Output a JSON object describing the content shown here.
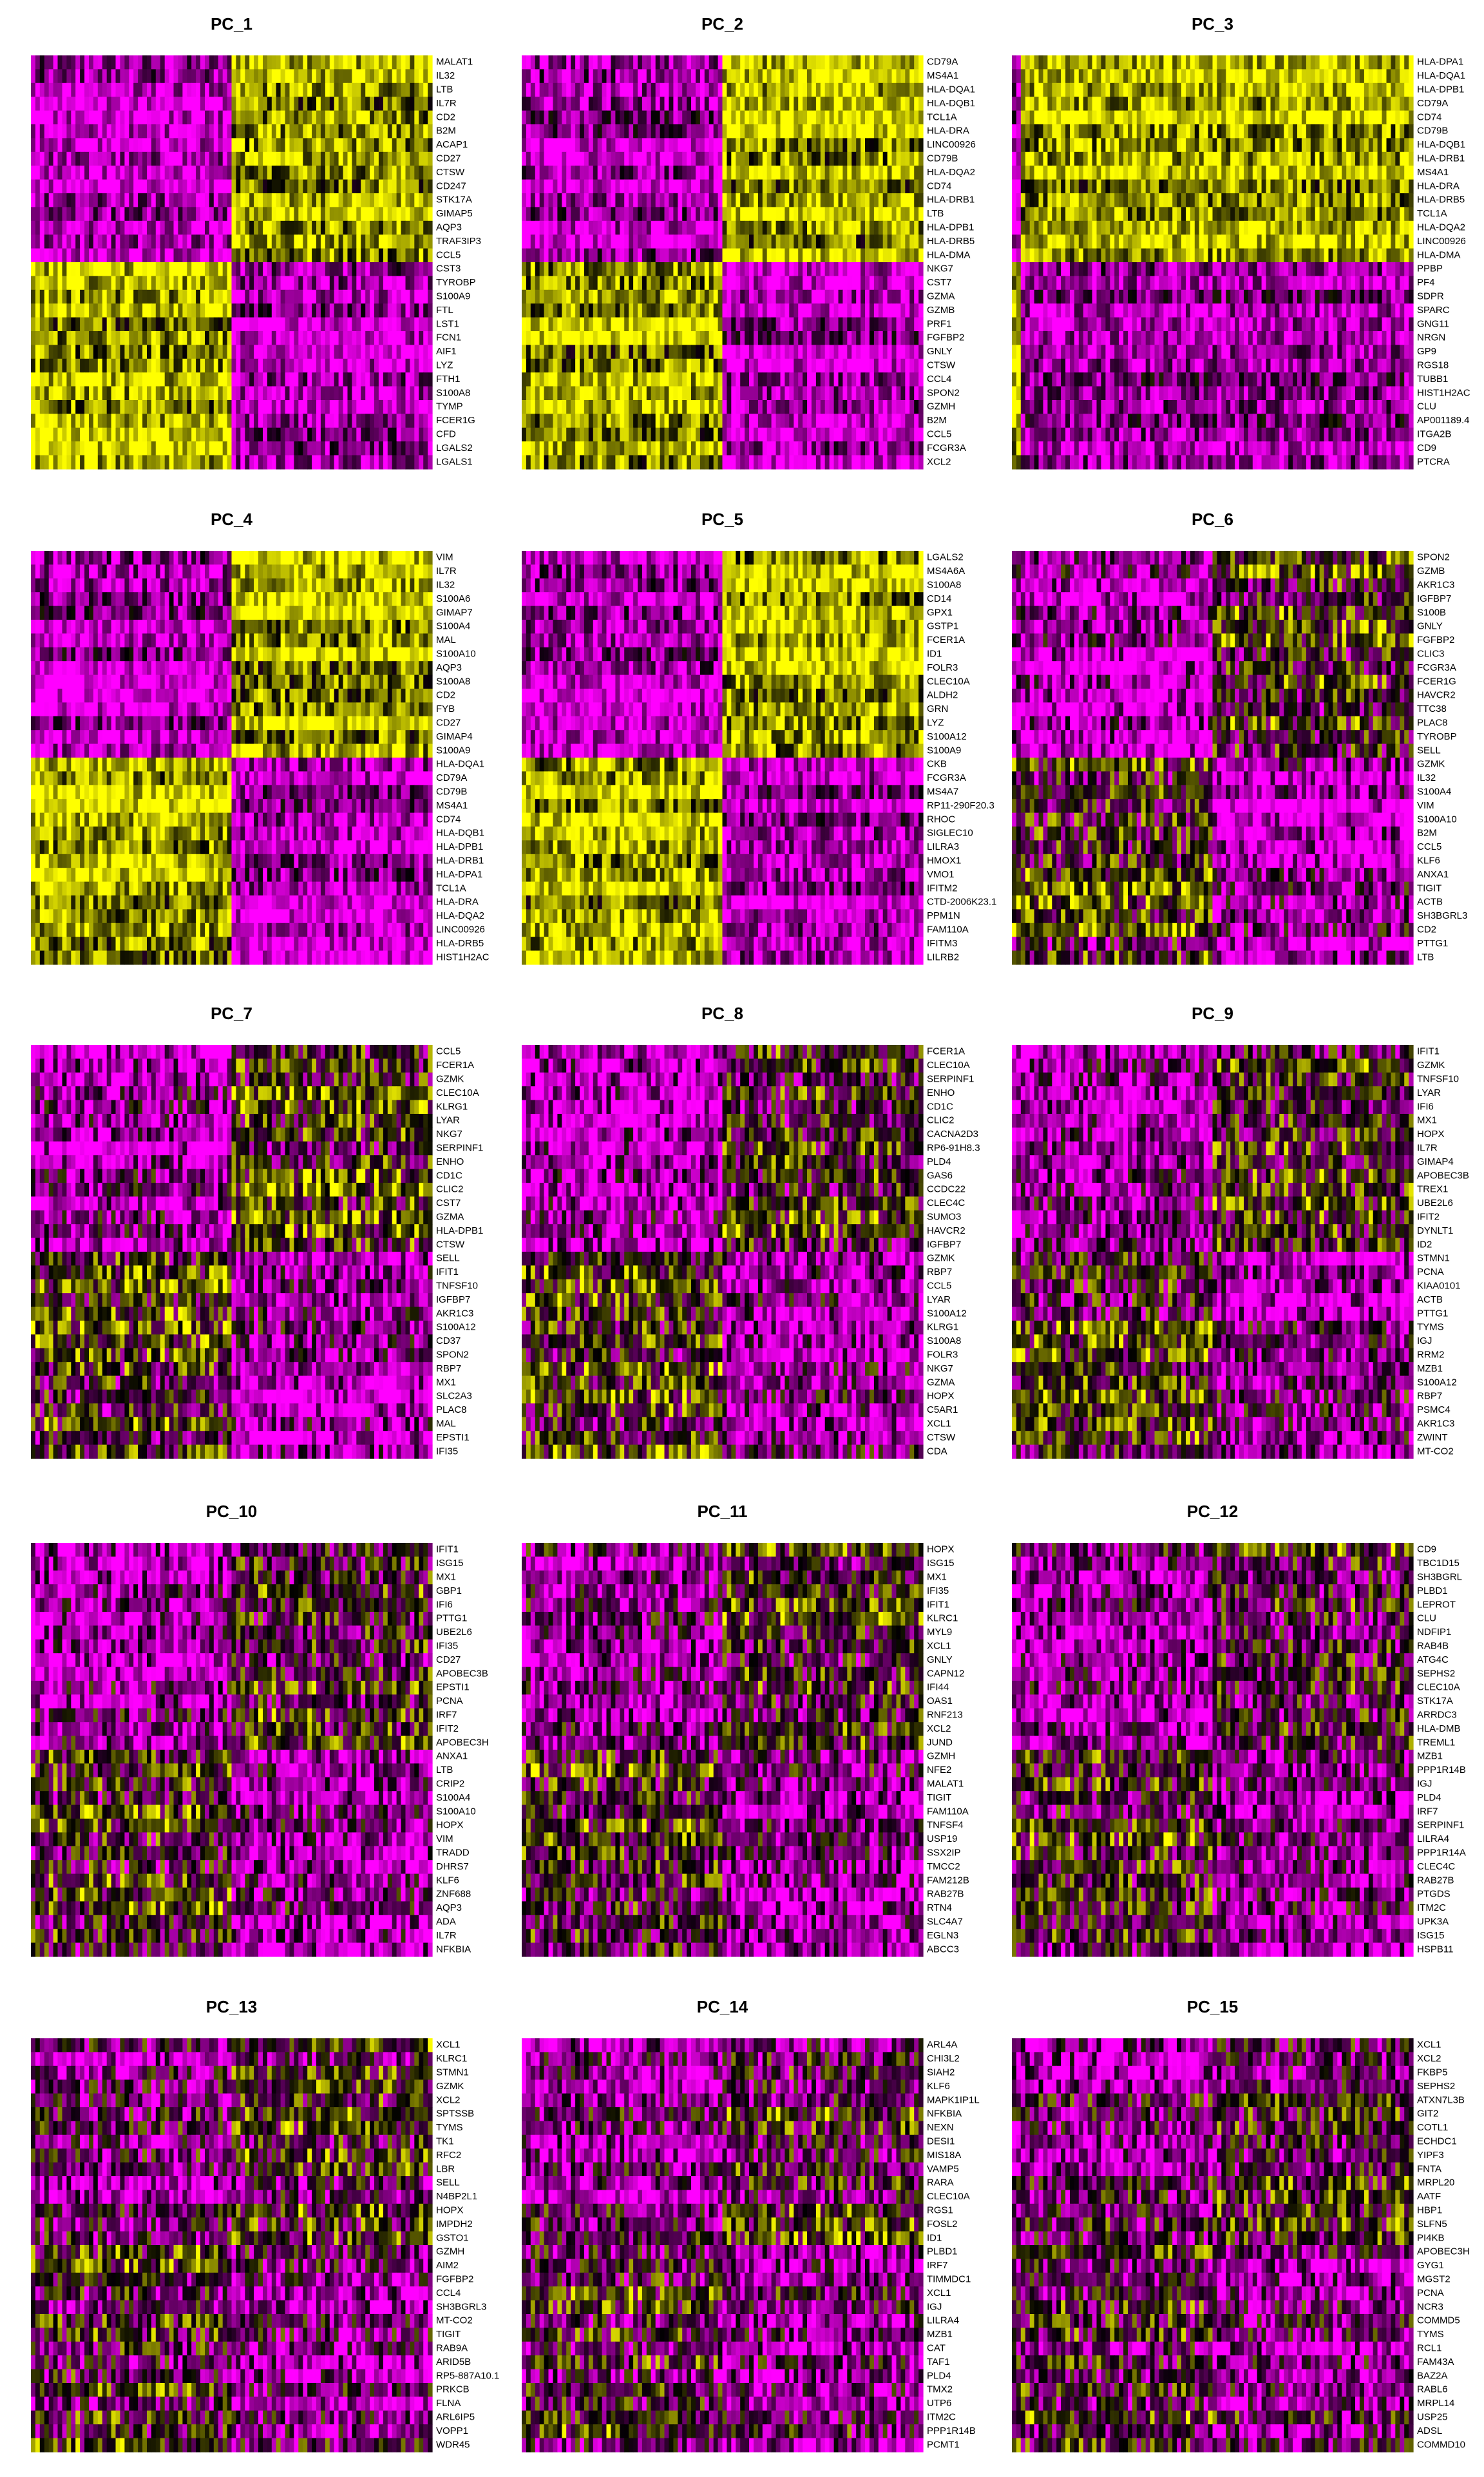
{
  "chart_data": [
    {
      "type": "heatmap",
      "title": "PC_1",
      "categories": [
        "MALAT1",
        "IL32",
        "LTB",
        "IL7R",
        "CD2",
        "B2M",
        "ACAP1",
        "CD27",
        "CTSW",
        "CD247",
        "STK17A",
        "GIMAP5",
        "AQP3",
        "TRAF3IP3",
        "CCL5",
        "CST3",
        "TYROBP",
        "S100A9",
        "FTL",
        "LST1",
        "FCN1",
        "AIF1",
        "LYZ",
        "FTH1",
        "S100A8",
        "TYMP",
        "FCER1G",
        "CFD",
        "LGALS2",
        "LGALS1"
      ]
    },
    {
      "type": "heatmap",
      "title": "PC_2",
      "categories": [
        "CD79A",
        "MS4A1",
        "HLA-DQA1",
        "HLA-DQB1",
        "TCL1A",
        "HLA-DRA",
        "LINC00926",
        "CD79B",
        "HLA-DQA2",
        "CD74",
        "HLA-DRB1",
        "LTB",
        "HLA-DPB1",
        "HLA-DRB5",
        "HLA-DMA",
        "NKG7",
        "CST7",
        "GZMA",
        "GZMB",
        "PRF1",
        "FGFBP2",
        "GNLY",
        "CTSW",
        "CCL4",
        "SPON2",
        "GZMH",
        "B2M",
        "CCL5",
        "FCGR3A",
        "XCL2"
      ]
    },
    {
      "type": "heatmap",
      "title": "PC_3",
      "categories": [
        "HLA-DPA1",
        "HLA-DQA1",
        "HLA-DPB1",
        "CD79A",
        "CD74",
        "CD79B",
        "HLA-DQB1",
        "HLA-DRB1",
        "MS4A1",
        "HLA-DRA",
        "HLA-DRB5",
        "TCL1A",
        "HLA-DQA2",
        "LINC00926",
        "HLA-DMA",
        "PPBP",
        "PF4",
        "SDPR",
        "SPARC",
        "GNG11",
        "NRGN",
        "GP9",
        "RGS18",
        "TUBB1",
        "HIST1H2AC",
        "CLU",
        "AP001189.4",
        "ITGA2B",
        "CD9",
        "PTCRA"
      ]
    },
    {
      "type": "heatmap",
      "title": "PC_4",
      "categories": [
        "VIM",
        "IL7R",
        "IL32",
        "S100A6",
        "GIMAP7",
        "S100A4",
        "MAL",
        "S100A10",
        "AQP3",
        "S100A8",
        "CD2",
        "FYB",
        "CD27",
        "GIMAP4",
        "S100A9",
        "HLA-DQA1",
        "CD79A",
        "CD79B",
        "MS4A1",
        "CD74",
        "HLA-DQB1",
        "HLA-DPB1",
        "HLA-DRB1",
        "HLA-DPA1",
        "TCL1A",
        "HLA-DRA",
        "HLA-DQA2",
        "LINC00926",
        "HLA-DRB5",
        "HIST1H2AC"
      ]
    },
    {
      "type": "heatmap",
      "title": "PC_5",
      "categories": [
        "LGALS2",
        "MS4A6A",
        "S100A8",
        "CD14",
        "GPX1",
        "GSTP1",
        "FCER1A",
        "ID1",
        "FOLR3",
        "CLEC10A",
        "ALDH2",
        "GRN",
        "LYZ",
        "S100A12",
        "S100A9",
        "CKB",
        "FCGR3A",
        "MS4A7",
        "RP11-290F20.3",
        "RHOC",
        "SIGLEC10",
        "LILRA3",
        "HMOX1",
        "VMO1",
        "IFITM2",
        "CTD-2006K23.1",
        "PPM1N",
        "FAM110A",
        "IFITM3",
        "LILRB2"
      ]
    },
    {
      "type": "heatmap",
      "title": "PC_6",
      "categories": [
        "SPON2",
        "GZMB",
        "AKR1C3",
        "IGFBP7",
        "S100B",
        "GNLY",
        "FGFBP2",
        "CLIC3",
        "FCGR3A",
        "FCER1G",
        "HAVCR2",
        "TTC38",
        "PLAC8",
        "TYROBP",
        "SELL",
        "GZMK",
        "IL32",
        "S100A4",
        "VIM",
        "S100A10",
        "B2M",
        "CCL5",
        "KLF6",
        "ANXA1",
        "TIGIT",
        "ACTB",
        "SH3BGRL3",
        "CD2",
        "PTTG1",
        "LTB"
      ]
    },
    {
      "type": "heatmap",
      "title": "PC_7",
      "categories": [
        "CCL5",
        "FCER1A",
        "GZMK",
        "CLEC10A",
        "KLRG1",
        "LYAR",
        "NKG7",
        "SERPINF1",
        "ENHO",
        "CD1C",
        "CLIC2",
        "CST7",
        "GZMA",
        "HLA-DPB1",
        "CTSW",
        "SELL",
        "IFIT1",
        "TNFSF10",
        "IGFBP7",
        "AKR1C3",
        "S100A12",
        "CD37",
        "SPON2",
        "RBP7",
        "MX1",
        "SLC2A3",
        "PLAC8",
        "MAL",
        "EPSTI1",
        "IFI35"
      ]
    },
    {
      "type": "heatmap",
      "title": "PC_8",
      "categories": [
        "FCER1A",
        "CLEC10A",
        "SERPINF1",
        "ENHO",
        "CD1C",
        "CLIC2",
        "CACNA2D3",
        "RP6-91H8.3",
        "PLD4",
        "GAS6",
        "CCDC22",
        "CLEC4C",
        "SUMO3",
        "HAVCR2",
        "IGFBP7",
        "GZMK",
        "RBP7",
        "CCL5",
        "LYAR",
        "S100A12",
        "KLRG1",
        "S100A8",
        "FOLR3",
        "NKG7",
        "GZMA",
        "HOPX",
        "C5AR1",
        "XCL1",
        "CTSW",
        "CDA"
      ]
    },
    {
      "type": "heatmap",
      "title": "PC_9",
      "categories": [
        "IFIT1",
        "GZMK",
        "TNFSF10",
        "LYAR",
        "IFI6",
        "MX1",
        "HOPX",
        "IL7R",
        "GIMAP4",
        "APOBEC3B",
        "TREX1",
        "UBE2L6",
        "IFIT2",
        "DYNLT1",
        "ID2",
        "STMN1",
        "PCNA",
        "KIAA0101",
        "ACTB",
        "PTTG1",
        "TYMS",
        "IGJ",
        "RRM2",
        "MZB1",
        "S100A12",
        "RBP7",
        "PSMC4",
        "AKR1C3",
        "ZWINT",
        "MT-CO2"
      ]
    },
    {
      "type": "heatmap",
      "title": "PC_10",
      "categories": [
        "IFIT1",
        "ISG15",
        "MX1",
        "GBP1",
        "IFI6",
        "PTTG1",
        "UBE2L6",
        "IFI35",
        "CD27",
        "APOBEC3B",
        "EPSTI1",
        "PCNA",
        "IRF7",
        "IFIT2",
        "APOBEC3H",
        "ANXA1",
        "LTB",
        "CRIP2",
        "S100A4",
        "S100A10",
        "HOPX",
        "VIM",
        "TRADD",
        "DHRS7",
        "KLF6",
        "ZNF688",
        "AQP3",
        "ADA",
        "IL7R",
        "NFKBIA"
      ]
    },
    {
      "type": "heatmap",
      "title": "PC_11",
      "categories": [
        "HOPX",
        "ISG15",
        "MX1",
        "IFI35",
        "IFIT1",
        "KLRC1",
        "MYL9",
        "XCL1",
        "GNLY",
        "CAPN12",
        "IFI44",
        "OAS1",
        "RNF213",
        "XCL2",
        "JUND",
        "GZMH",
        "NFE2",
        "MALAT1",
        "TIGIT",
        "FAM110A",
        "TNFSF4",
        "USP19",
        "SSX2IP",
        "TMCC2",
        "FAM212B",
        "RAB27B",
        "RTN4",
        "SLC4A7",
        "EGLN3",
        "ABCC3"
      ]
    },
    {
      "type": "heatmap",
      "title": "PC_12",
      "categories": [
        "CD9",
        "TBC1D15",
        "SH3BGRL",
        "PLBD1",
        "LEPROT",
        "CLU",
        "NDFIP1",
        "RAB4B",
        "ATG4C",
        "SEPHS2",
        "CLEC10A",
        "STK17A",
        "ARRDC3",
        "HLA-DMB",
        "TREML1",
        "MZB1",
        "PPP1R14B",
        "IGJ",
        "PLD4",
        "IRF7",
        "SERPINF1",
        "LILRA4",
        "PPP1R14A",
        "CLEC4C",
        "RAB27B",
        "PTGDS",
        "ITM2C",
        "UPK3A",
        "ISG15",
        "HSPB11"
      ]
    },
    {
      "type": "heatmap",
      "title": "PC_13",
      "categories": [
        "XCL1",
        "KLRC1",
        "STMN1",
        "GZMK",
        "XCL2",
        "SPTSSB",
        "TYMS",
        "TK1",
        "RFC2",
        "LBR",
        "SELL",
        "N4BP2L1",
        "HOPX",
        "IMPDH2",
        "GSTO1",
        "GZMH",
        "AIM2",
        "FGFBP2",
        "CCL4",
        "SH3BGRL3",
        "MT-CO2",
        "TIGIT",
        "RAB9A",
        "ARID5B",
        "RP5-887A10.1",
        "PRKCB",
        "FLNA",
        "ARL6IP5",
        "VOPP1",
        "WDR45"
      ]
    },
    {
      "type": "heatmap",
      "title": "PC_14",
      "categories": [
        "ARL4A",
        "CHI3L2",
        "SIAH2",
        "KLF6",
        "MAPK1IP1L",
        "NFKBIA",
        "NEXN",
        "DESI1",
        "MIS18A",
        "VAMP5",
        "RARA",
        "CLEC10A",
        "RGS1",
        "FOSL2",
        "ID1",
        "PLBD1",
        "IRF7",
        "TIMMDC1",
        "XCL1",
        "IGJ",
        "LILRA4",
        "MZB1",
        "CAT",
        "TAF1",
        "PLD4",
        "TMX2",
        "UTP6",
        "ITM2C",
        "PPP1R14B",
        "PCMT1"
      ]
    },
    {
      "type": "heatmap",
      "title": "PC_15",
      "categories": [
        "XCL1",
        "XCL2",
        "FKBP5",
        "SEPHS2",
        "ATXN7L3B",
        "GIT2",
        "COTL1",
        "ECHDC1",
        "YIPF3",
        "FNTA",
        "MRPL20",
        "AATF",
        "HBP1",
        "SLFN5",
        "PI4KB",
        "APOBEC3H",
        "GYG1",
        "MGST2",
        "PCNA",
        "NCR3",
        "COMMD5",
        "TYMS",
        "RCL1",
        "FAM43A",
        "BAZ2A",
        "RABL6",
        "MRPL14",
        "USP25",
        "ADSL",
        "COMMD10"
      ]
    }
  ]
}
